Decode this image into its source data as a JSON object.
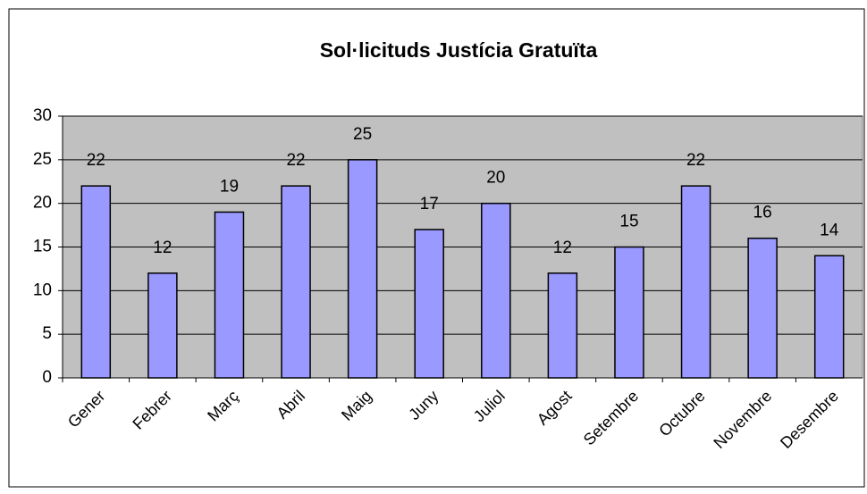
{
  "chart_data": {
    "type": "bar",
    "title": "Sol·licituds Justícia Gratuïta",
    "categories": [
      "Gener",
      "Febrer",
      "Març",
      "Abril",
      "Maig",
      "Juny",
      "Juliol",
      "Agost",
      "Setembre",
      "Octubre",
      "Novembre",
      "Desembre"
    ],
    "values": [
      22,
      12,
      19,
      22,
      25,
      17,
      20,
      12,
      15,
      22,
      16,
      14
    ],
    "color": "#9999ff",
    "plot_background": "#c0c0c0",
    "ylim": [
      0,
      30
    ],
    "yticks": [
      0,
      5,
      10,
      15,
      20,
      25,
      30
    ],
    "grid": true
  }
}
